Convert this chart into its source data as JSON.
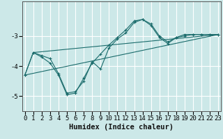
{
  "title": "",
  "xlabel": "Humidex (Indice chaleur)",
  "bg_color": "#cce8e8",
  "line_color": "#1a6b6b",
  "grid_color": "#ffffff",
  "series": [
    {
      "x": [
        0,
        1,
        2,
        3,
        4,
        5,
        6,
        7,
        8,
        9,
        10,
        11,
        12,
        13,
        14,
        15,
        16,
        17,
        18,
        19,
        20,
        21,
        22,
        23
      ],
      "y": [
        -4.3,
        -3.55,
        -3.65,
        -3.75,
        -4.25,
        -4.9,
        -4.85,
        -4.5,
        -3.85,
        -4.1,
        -3.4,
        -3.1,
        -2.9,
        -2.55,
        -2.45,
        -2.6,
        -3.0,
        -3.2,
        -3.05,
        -3.0,
        -2.95,
        -2.95,
        -2.95,
        -2.95
      ],
      "marker": "+"
    },
    {
      "x": [
        0,
        1,
        2,
        3,
        4,
        5,
        6,
        7,
        8,
        9,
        10,
        11,
        12,
        13,
        14,
        15,
        16,
        17,
        18,
        19,
        20,
        21,
        22,
        23
      ],
      "y": [
        -4.3,
        -3.55,
        -3.7,
        -3.9,
        -4.3,
        -4.95,
        -4.9,
        -4.4,
        -3.9,
        -3.6,
        -3.3,
        -3.05,
        -2.8,
        -2.5,
        -2.45,
        -2.65,
        -3.05,
        -3.25,
        -3.05,
        -2.95,
        -2.95,
        -2.95,
        -2.95,
        -2.95
      ],
      "marker": "+"
    },
    {
      "x": [
        0,
        23
      ],
      "y": [
        -4.3,
        -2.95
      ],
      "marker": null
    },
    {
      "x": [
        1,
        23
      ],
      "y": [
        -3.55,
        -2.95
      ],
      "marker": null
    }
  ],
  "xlim": [
    -0.3,
    23.3
  ],
  "ylim": [
    -5.5,
    -1.85
  ],
  "yticks": [
    -5,
    -4,
    -3
  ],
  "xticks": [
    0,
    1,
    2,
    3,
    4,
    5,
    6,
    7,
    8,
    9,
    10,
    11,
    12,
    13,
    14,
    15,
    16,
    17,
    18,
    19,
    20,
    21,
    22,
    23
  ],
  "tick_fontsize": 6.5,
  "xlabel_fontsize": 7.5
}
